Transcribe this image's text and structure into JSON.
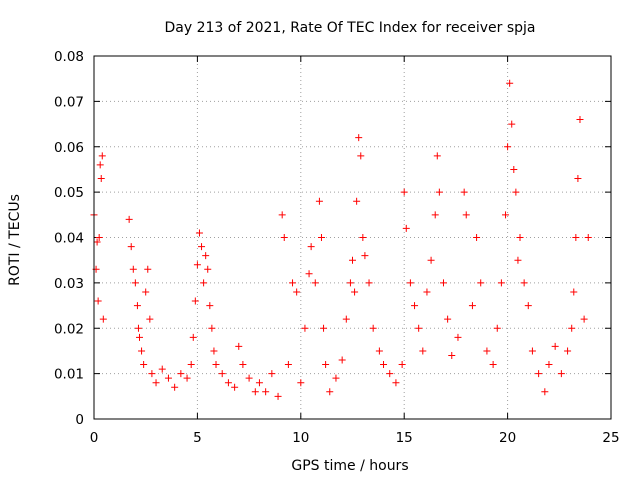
{
  "chart_data": {
    "type": "scatter",
    "title": "Day 213 of 2021, Rate Of TEC Index for receiver spja",
    "xlabel": "GPS time / hours",
    "ylabel": "ROTI / TECUs",
    "xlim": [
      0,
      25
    ],
    "ylim": [
      0,
      0.08
    ],
    "x_ticks": [
      0,
      5,
      10,
      15,
      20,
      25
    ],
    "x_tick_labels": [
      "0",
      "5",
      "10",
      "15",
      "20",
      "25"
    ],
    "y_ticks": [
      0,
      0.01,
      0.02,
      0.03,
      0.04,
      0.05,
      0.06,
      0.07,
      0.08
    ],
    "y_tick_labels": [
      "0",
      "0.01",
      "0.02",
      "0.03",
      "0.04",
      "0.05",
      "0.06",
      "0.07",
      "0.08"
    ],
    "grid": true,
    "marker": "+",
    "marker_color": "#ff0000",
    "series": [
      {
        "name": "ROTI",
        "points": [
          [
            0.0,
            0.045
          ],
          [
            0.1,
            0.033
          ],
          [
            0.15,
            0.039
          ],
          [
            0.2,
            0.026
          ],
          [
            0.25,
            0.04
          ],
          [
            0.3,
            0.056
          ],
          [
            0.35,
            0.053
          ],
          [
            0.4,
            0.058
          ],
          [
            0.45,
            0.022
          ],
          [
            1.7,
            0.044
          ],
          [
            1.8,
            0.038
          ],
          [
            1.9,
            0.033
          ],
          [
            2.0,
            0.03
          ],
          [
            2.1,
            0.025
          ],
          [
            2.15,
            0.02
          ],
          [
            2.2,
            0.018
          ],
          [
            2.3,
            0.015
          ],
          [
            2.4,
            0.012
          ],
          [
            2.5,
            0.028
          ],
          [
            2.6,
            0.033
          ],
          [
            2.7,
            0.022
          ],
          [
            2.8,
            0.01
          ],
          [
            3.0,
            0.008
          ],
          [
            3.3,
            0.011
          ],
          [
            3.6,
            0.009
          ],
          [
            3.9,
            0.007
          ],
          [
            4.2,
            0.01
          ],
          [
            4.5,
            0.009
          ],
          [
            4.7,
            0.012
          ],
          [
            4.8,
            0.018
          ],
          [
            4.9,
            0.026
          ],
          [
            5.0,
            0.034
          ],
          [
            5.1,
            0.041
          ],
          [
            5.2,
            0.038
          ],
          [
            5.3,
            0.03
          ],
          [
            5.4,
            0.036
          ],
          [
            5.5,
            0.033
          ],
          [
            5.6,
            0.025
          ],
          [
            5.7,
            0.02
          ],
          [
            5.8,
            0.015
          ],
          [
            5.9,
            0.012
          ],
          [
            6.2,
            0.01
          ],
          [
            6.5,
            0.008
          ],
          [
            6.8,
            0.007
          ],
          [
            7.0,
            0.016
          ],
          [
            7.2,
            0.012
          ],
          [
            7.5,
            0.009
          ],
          [
            7.8,
            0.006
          ],
          [
            8.0,
            0.008
          ],
          [
            8.3,
            0.006
          ],
          [
            8.6,
            0.01
          ],
          [
            8.9,
            0.005
          ],
          [
            9.1,
            0.045
          ],
          [
            9.2,
            0.04
          ],
          [
            9.4,
            0.012
          ],
          [
            9.6,
            0.03
          ],
          [
            9.8,
            0.028
          ],
          [
            10.0,
            0.008
          ],
          [
            10.2,
            0.02
          ],
          [
            10.4,
            0.032
          ],
          [
            10.5,
            0.038
          ],
          [
            10.7,
            0.03
          ],
          [
            10.9,
            0.048
          ],
          [
            11.0,
            0.04
          ],
          [
            11.1,
            0.02
          ],
          [
            11.2,
            0.012
          ],
          [
            11.4,
            0.006
          ],
          [
            11.7,
            0.009
          ],
          [
            12.0,
            0.013
          ],
          [
            12.2,
            0.022
          ],
          [
            12.4,
            0.03
          ],
          [
            12.5,
            0.035
          ],
          [
            12.6,
            0.028
          ],
          [
            12.7,
            0.048
          ],
          [
            12.8,
            0.062
          ],
          [
            12.9,
            0.058
          ],
          [
            13.0,
            0.04
          ],
          [
            13.1,
            0.036
          ],
          [
            13.3,
            0.03
          ],
          [
            13.5,
            0.02
          ],
          [
            13.8,
            0.015
          ],
          [
            14.0,
            0.012
          ],
          [
            14.3,
            0.01
          ],
          [
            14.6,
            0.008
          ],
          [
            14.9,
            0.012
          ],
          [
            15.0,
            0.05
          ],
          [
            15.1,
            0.042
          ],
          [
            15.3,
            0.03
          ],
          [
            15.5,
            0.025
          ],
          [
            15.7,
            0.02
          ],
          [
            15.9,
            0.015
          ],
          [
            16.1,
            0.028
          ],
          [
            16.3,
            0.035
          ],
          [
            16.5,
            0.045
          ],
          [
            16.6,
            0.058
          ],
          [
            16.7,
            0.05
          ],
          [
            16.9,
            0.03
          ],
          [
            17.1,
            0.022
          ],
          [
            17.3,
            0.014
          ],
          [
            17.6,
            0.018
          ],
          [
            17.9,
            0.05
          ],
          [
            18.0,
            0.045
          ],
          [
            18.3,
            0.025
          ],
          [
            18.5,
            0.04
          ],
          [
            18.7,
            0.03
          ],
          [
            19.0,
            0.015
          ],
          [
            19.3,
            0.012
          ],
          [
            19.5,
            0.02
          ],
          [
            19.7,
            0.03
          ],
          [
            19.9,
            0.045
          ],
          [
            20.0,
            0.06
          ],
          [
            20.1,
            0.074
          ],
          [
            20.2,
            0.065
          ],
          [
            20.3,
            0.055
          ],
          [
            20.4,
            0.05
          ],
          [
            20.5,
            0.035
          ],
          [
            20.6,
            0.04
          ],
          [
            20.8,
            0.03
          ],
          [
            21.0,
            0.025
          ],
          [
            21.2,
            0.015
          ],
          [
            21.5,
            0.01
          ],
          [
            21.8,
            0.006
          ],
          [
            22.0,
            0.012
          ],
          [
            22.3,
            0.016
          ],
          [
            22.6,
            0.01
          ],
          [
            22.9,
            0.015
          ],
          [
            23.1,
            0.02
          ],
          [
            23.2,
            0.028
          ],
          [
            23.3,
            0.04
          ],
          [
            23.4,
            0.053
          ],
          [
            23.5,
            0.066
          ],
          [
            23.7,
            0.022
          ],
          [
            23.9,
            0.04
          ]
        ]
      }
    ]
  }
}
